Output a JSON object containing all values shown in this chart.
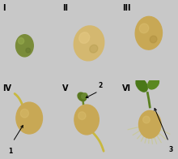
{
  "figsize": [
    2.2,
    1.96
  ],
  "dpi": 100,
  "bg_color": "#c8c8c8",
  "panel_bg_top": "#f0f0f0",
  "panel_bg_bot": "#e0e0e0",
  "labels": [
    "I",
    "II",
    "III",
    "IV",
    "V",
    "VI"
  ],
  "seed_colors": {
    "green_seed": "#7a8c3a",
    "yellow_seed": "#d4b870",
    "tan_seed": "#c8a855",
    "radicle_color": "#c8b840",
    "stem_color": "#7a9030",
    "white_root": "#c8c890",
    "leaf_color": "#5a8020"
  }
}
